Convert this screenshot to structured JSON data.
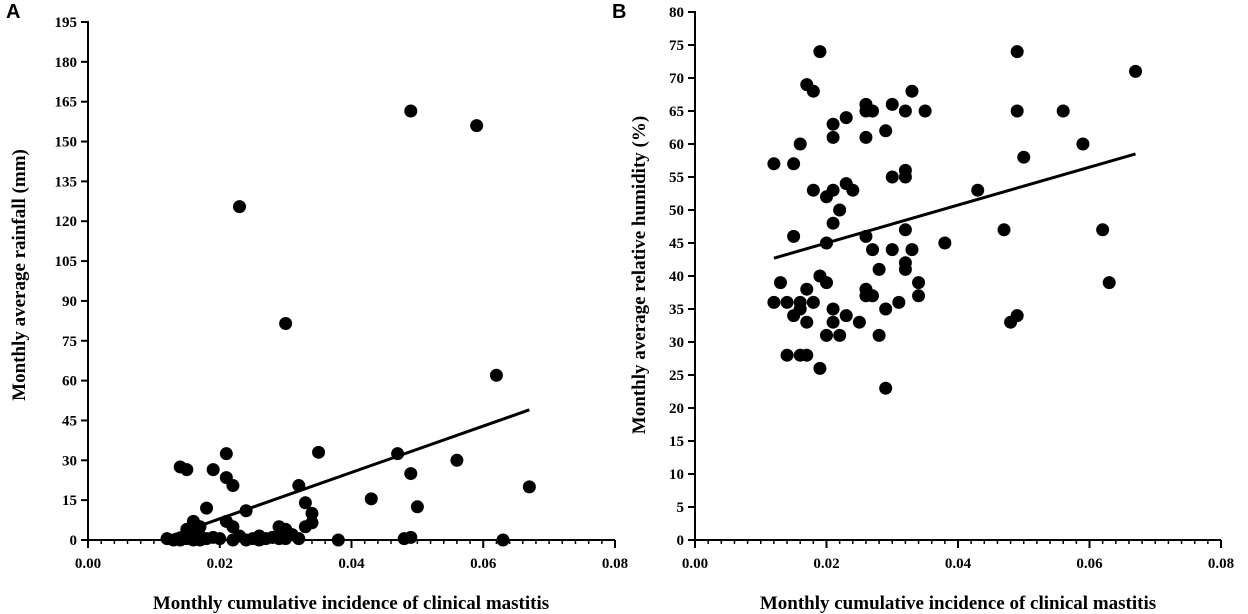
{
  "chart_data": [
    {
      "type": "scatter",
      "panel": "A",
      "xlabel": "Monthly cumulative incidence of clinical mastitis",
      "ylabel": "Monthly average rainfall (mm)",
      "xlim": [
        0,
        0.08
      ],
      "ylim": [
        0,
        195
      ],
      "xticks": [
        0.0,
        0.02,
        0.04,
        0.06,
        0.08
      ],
      "xtick_labels": [
        "0.00",
        "0.02",
        "0.04",
        "0.06",
        "0.08"
      ],
      "yticks": [
        0,
        15,
        30,
        45,
        60,
        75,
        90,
        105,
        120,
        135,
        150,
        165,
        180,
        195
      ],
      "ytick_labels": [
        "0",
        "15",
        "30",
        "45",
        "60",
        "75",
        "90",
        "105",
        "120",
        "135",
        "150",
        "165",
        "180",
        "195"
      ],
      "points": [
        [
          0.012,
          0.5
        ],
        [
          0.013,
          0
        ],
        [
          0.014,
          0
        ],
        [
          0.014,
          27.5
        ],
        [
          0.015,
          26.5
        ],
        [
          0.015,
          4
        ],
        [
          0.015,
          0.5
        ],
        [
          0.016,
          2
        ],
        [
          0.016,
          7
        ],
        [
          0.016,
          0
        ],
        [
          0.017,
          1.5
        ],
        [
          0.017,
          5
        ],
        [
          0.017,
          0
        ],
        [
          0.018,
          12
        ],
        [
          0.018,
          0.5
        ],
        [
          0.019,
          26.5
        ],
        [
          0.019,
          1
        ],
        [
          0.02,
          0.5
        ],
        [
          0.021,
          32.5
        ],
        [
          0.021,
          23.5
        ],
        [
          0.021,
          7
        ],
        [
          0.022,
          20.5
        ],
        [
          0.022,
          5
        ],
        [
          0.022,
          0
        ],
        [
          0.023,
          125.5
        ],
        [
          0.023,
          1.5
        ],
        [
          0.024,
          11
        ],
        [
          0.024,
          0
        ],
        [
          0.025,
          0.5
        ],
        [
          0.026,
          0
        ],
        [
          0.026,
          1.5
        ],
        [
          0.027,
          0.5
        ],
        [
          0.028,
          1
        ],
        [
          0.029,
          5
        ],
        [
          0.029,
          0.5
        ],
        [
          0.03,
          81.5
        ],
        [
          0.03,
          4
        ],
        [
          0.03,
          0.5
        ],
        [
          0.031,
          2
        ],
        [
          0.032,
          20.5
        ],
        [
          0.032,
          0.5
        ],
        [
          0.033,
          14
        ],
        [
          0.033,
          5
        ],
        [
          0.034,
          10
        ],
        [
          0.034,
          6.5
        ],
        [
          0.035,
          33
        ],
        [
          0.038,
          0
        ],
        [
          0.043,
          15.5
        ],
        [
          0.047,
          32.5
        ],
        [
          0.048,
          0.5
        ],
        [
          0.049,
          161.5
        ],
        [
          0.049,
          25
        ],
        [
          0.049,
          1
        ],
        [
          0.05,
          12.5
        ],
        [
          0.056,
          30
        ],
        [
          0.059,
          156
        ],
        [
          0.062,
          62
        ],
        [
          0.063,
          0
        ],
        [
          0.067,
          20
        ]
      ],
      "trendline": {
        "x": [
          0.012,
          0.067
        ],
        "y": [
          1,
          49
        ]
      }
    },
    {
      "type": "scatter",
      "panel": "B",
      "xlabel": "Monthly cumulative incidence of clinical mastitis",
      "ylabel": "Monthly average relative humidity (%)",
      "xlim": [
        0,
        0.08
      ],
      "ylim": [
        0,
        80
      ],
      "xticks": [
        0.0,
        0.02,
        0.04,
        0.06,
        0.08
      ],
      "xtick_labels": [
        "0.00",
        "0.02",
        "0.04",
        "0.06",
        "0.08"
      ],
      "yticks": [
        0,
        5,
        10,
        15,
        20,
        25,
        30,
        35,
        40,
        45,
        50,
        55,
        60,
        65,
        70,
        75,
        80
      ],
      "ytick_labels": [
        "0",
        "5",
        "10",
        "15",
        "20",
        "25",
        "30",
        "35",
        "40",
        "45",
        "50",
        "55",
        "60",
        "65",
        "70",
        "75",
        "80"
      ],
      "points": [
        [
          0.012,
          57
        ],
        [
          0.012,
          36
        ],
        [
          0.013,
          39
        ],
        [
          0.014,
          36
        ],
        [
          0.014,
          28
        ],
        [
          0.015,
          57
        ],
        [
          0.015,
          46
        ],
        [
          0.015,
          34
        ],
        [
          0.016,
          60
        ],
        [
          0.016,
          36
        ],
        [
          0.016,
          35
        ],
        [
          0.016,
          28
        ],
        [
          0.017,
          69
        ],
        [
          0.017,
          38
        ],
        [
          0.017,
          33
        ],
        [
          0.017,
          28
        ],
        [
          0.018,
          68
        ],
        [
          0.018,
          53
        ],
        [
          0.018,
          36
        ],
        [
          0.019,
          74
        ],
        [
          0.019,
          40
        ],
        [
          0.019,
          26
        ],
        [
          0.02,
          52
        ],
        [
          0.02,
          45
        ],
        [
          0.02,
          39
        ],
        [
          0.02,
          31
        ],
        [
          0.021,
          63
        ],
        [
          0.021,
          61
        ],
        [
          0.021,
          53
        ],
        [
          0.021,
          48
        ],
        [
          0.021,
          35
        ],
        [
          0.021,
          33
        ],
        [
          0.022,
          50
        ],
        [
          0.022,
          31
        ],
        [
          0.023,
          64
        ],
        [
          0.023,
          54
        ],
        [
          0.023,
          34
        ],
        [
          0.024,
          53
        ],
        [
          0.025,
          33
        ],
        [
          0.026,
          66
        ],
        [
          0.026,
          65
        ],
        [
          0.026,
          61
        ],
        [
          0.026,
          46
        ],
        [
          0.026,
          38
        ],
        [
          0.026,
          37
        ],
        [
          0.027,
          65
        ],
        [
          0.027,
          44
        ],
        [
          0.027,
          37
        ],
        [
          0.028,
          41
        ],
        [
          0.028,
          31
        ],
        [
          0.029,
          62
        ],
        [
          0.029,
          35
        ],
        [
          0.029,
          23
        ],
        [
          0.03,
          66
        ],
        [
          0.03,
          55
        ],
        [
          0.03,
          44
        ],
        [
          0.031,
          36
        ],
        [
          0.032,
          65
        ],
        [
          0.032,
          56
        ],
        [
          0.032,
          55
        ],
        [
          0.032,
          47
        ],
        [
          0.032,
          42
        ],
        [
          0.032,
          41
        ],
        [
          0.033,
          68
        ],
        [
          0.033,
          44
        ],
        [
          0.034,
          39
        ],
        [
          0.034,
          37
        ],
        [
          0.035,
          65
        ],
        [
          0.038,
          45
        ],
        [
          0.043,
          53
        ],
        [
          0.047,
          47
        ],
        [
          0.048,
          33
        ],
        [
          0.049,
          74
        ],
        [
          0.049,
          65
        ],
        [
          0.049,
          34
        ],
        [
          0.05,
          58
        ],
        [
          0.056,
          65
        ],
        [
          0.059,
          60
        ],
        [
          0.062,
          47
        ],
        [
          0.063,
          39
        ],
        [
          0.067,
          71
        ]
      ],
      "trendline": {
        "x": [
          0.012,
          0.067
        ],
        "y": [
          42.7,
          58.5
        ]
      }
    }
  ]
}
